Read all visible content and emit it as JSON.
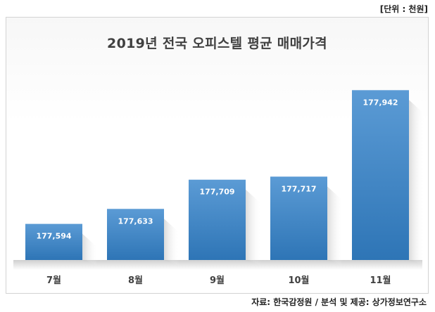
{
  "unit_note": "[단위 : 천원]",
  "source_note": "자료: 한국감정원 / 분석 및 제공: 상가정보연구소",
  "colors": {
    "bar_top": "#5b9bd5",
    "bar_bottom": "#2e75b6",
    "bar_label": "#ffffff",
    "axis_label": "#404040",
    "title": "#404040"
  },
  "chart_data": {
    "type": "bar",
    "title": "2019년 전국 오피스텔 평균 매매가격",
    "xlabel": "",
    "ylabel": "",
    "categories": [
      "7월",
      "8월",
      "9월",
      "10월",
      "11월"
    ],
    "values": [
      177594,
      177633,
      177709,
      177717,
      177942
    ],
    "value_labels": [
      "177,594",
      "177,633",
      "177,709",
      "177,717",
      "177,942"
    ],
    "ylim": [
      177500,
      177970
    ],
    "grid": false,
    "legend": "none"
  }
}
